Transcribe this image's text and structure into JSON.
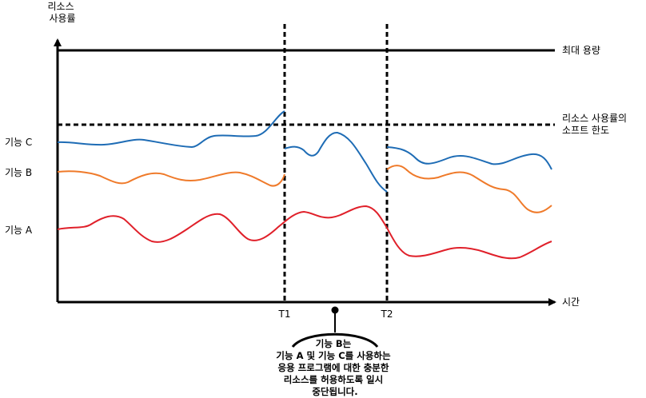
{
  "y_axis_label": [
    "리소스",
    "사용률"
  ],
  "x_axis_label": "시간",
  "max_capacity_label": "최대 용량",
  "soft_limit_label": [
    "리소스 사용률의",
    "소프트 한도"
  ],
  "feature_labels": {
    "c": "기능 C",
    "b": "기능 B",
    "a": "기능 A"
  },
  "time_marks": {
    "t1": "T1",
    "t2": "T2"
  },
  "callout_lines": [
    "기능 B는",
    "기능 A 및 기능 C를 사용하는",
    "응용 프로그램에 대한 충분한",
    "리소스를 허용하도록 일시",
    "중단됩니다."
  ],
  "colors": {
    "feature_a": "#e0202a",
    "feature_b": "#ef7a2a",
    "feature_c": "#1e6cb5",
    "axis": "#000000"
  }
}
